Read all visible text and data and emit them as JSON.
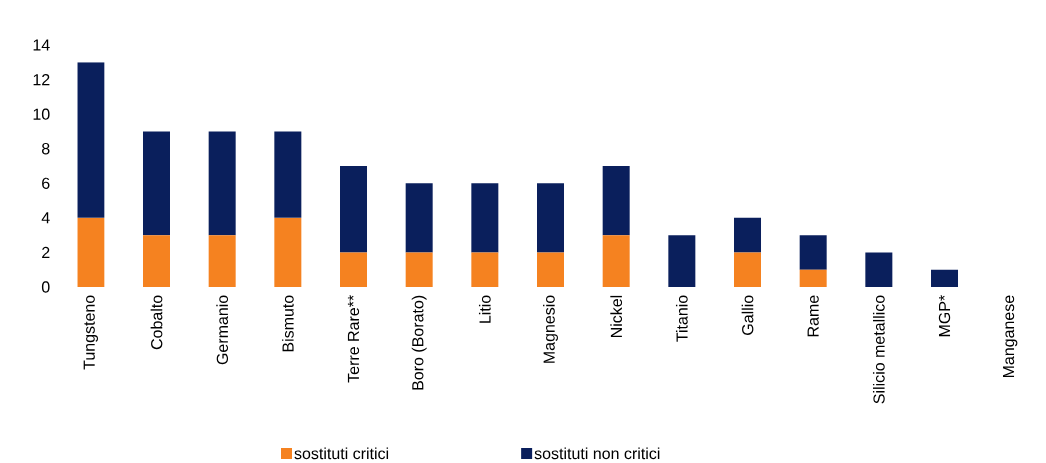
{
  "chart_data": {
    "type": "bar",
    "stacked": true,
    "legend": "bottom",
    "grid": false,
    "categories": [
      "Tungsteno",
      "Cobalto",
      "Germanio",
      "Bismuto",
      "Terre Rare**",
      "Boro (Borato)",
      "Litio",
      "Magnesio",
      "Nickel",
      "Titanio",
      "Gallio",
      "Rame",
      "Silicio metallico",
      "MGP*",
      "Manganese"
    ],
    "series": [
      {
        "name": "sostituti critici",
        "color": "#f58220",
        "values": [
          4,
          3,
          3,
          4,
          2,
          2,
          2,
          2,
          3,
          0,
          2,
          1,
          0,
          0,
          0
        ]
      },
      {
        "name": "sostituti non critici",
        "color": "#0a1f5c",
        "values": [
          9,
          6,
          6,
          5,
          5,
          4,
          4,
          4,
          4,
          3,
          2,
          2,
          2,
          1,
          0
        ]
      }
    ],
    "ylim": [
      0,
      14
    ],
    "yticks": [
      0,
      2,
      4,
      6,
      8,
      10,
      12,
      14
    ]
  }
}
